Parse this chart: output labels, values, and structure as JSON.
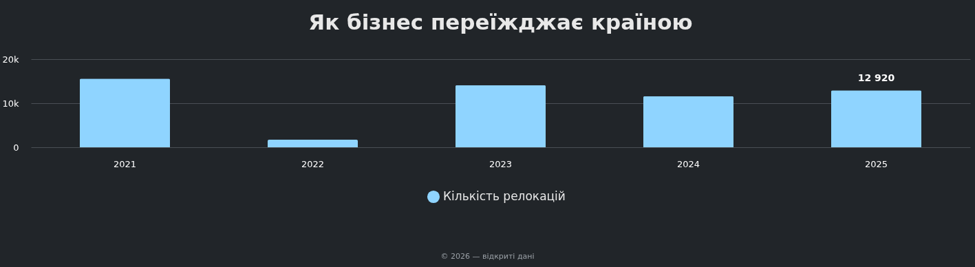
{
  "chart_data": {
    "type": "bar",
    "title": "Як бізнес переїжджає країною",
    "categories": [
      "2021",
      "2022",
      "2023",
      "2024",
      "2025"
    ],
    "series": [
      {
        "name": "Кількість релокацій",
        "color": "#8fd4ff",
        "values": [
          15600,
          1700,
          14100,
          11600,
          12920
        ],
        "value_labels": [
          null,
          null,
          null,
          null,
          "12 920"
        ]
      }
    ],
    "ylim": [
      0,
      20000
    ],
    "yticks": [
      {
        "value": 0,
        "label": "0"
      },
      {
        "value": 10000,
        "label": "10k"
      },
      {
        "value": 20000,
        "label": "20k"
      }
    ],
    "grid": "y",
    "legend": "bottom",
    "annotations": [
      "© 2026 — відкриті дані"
    ]
  }
}
